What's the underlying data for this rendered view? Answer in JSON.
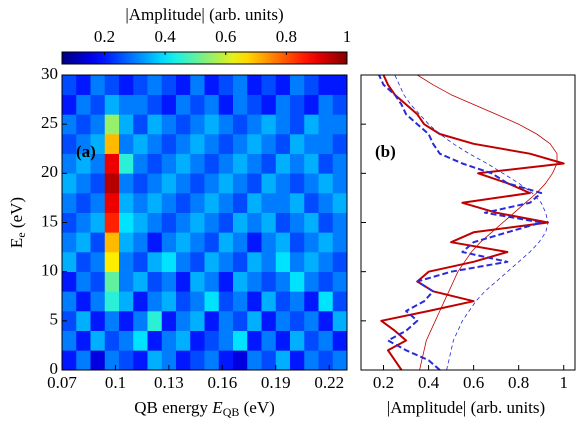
{
  "chart_data": [
    {
      "type": "heatmap",
      "panel_label": "(a)",
      "xlabel_parts": [
        "QB energy ",
        "E",
        "QB",
        " (eV)"
      ],
      "ylabel_parts": [
        "E",
        "e",
        " (eV)"
      ],
      "xlim": [
        0.07,
        0.23
      ],
      "xticks": [
        0.07,
        0.1,
        0.13,
        0.16,
        0.19,
        0.22
      ],
      "ylim": [
        0,
        30
      ],
      "yticks": [
        0,
        5,
        10,
        15,
        20,
        25,
        30
      ],
      "colormap": "jet",
      "colorbar": {
        "label": "|Amplitude| (arb. units)",
        "lim": [
          0.06,
          1
        ],
        "ticks": [
          0.2,
          0.4,
          0.6,
          0.8,
          1
        ]
      },
      "z": [
        [
          0.2,
          0.3,
          0.15,
          0.3,
          0.25,
          0.2,
          0.35,
          0.3,
          0.2,
          0.25,
          0.3,
          0.2,
          0.15,
          0.3,
          0.25,
          0.35,
          0.2,
          0.3,
          0.25,
          0.3
        ],
        [
          0.3,
          0.2,
          0.35,
          0.25,
          0.3,
          0.4,
          0.2,
          0.3,
          0.35,
          0.2,
          0.25,
          0.3,
          0.4,
          0.2,
          0.3,
          0.2,
          0.35,
          0.25,
          0.3,
          0.2
        ],
        [
          0.25,
          0.35,
          0.2,
          0.3,
          0.2,
          0.3,
          0.45,
          0.2,
          0.3,
          0.35,
          0.2,
          0.3,
          0.25,
          0.35,
          0.2,
          0.3,
          0.25,
          0.3,
          0.2,
          0.35
        ],
        [
          0.3,
          0.2,
          0.3,
          0.45,
          0.35,
          0.2,
          0.3,
          0.35,
          0.25,
          0.3,
          0.4,
          0.25,
          0.3,
          0.2,
          0.35,
          0.25,
          0.3,
          0.2,
          0.4,
          0.25
        ],
        [
          0.2,
          0.3,
          0.25,
          0.5,
          0.3,
          0.35,
          0.25,
          0.3,
          0.2,
          0.35,
          0.3,
          0.2,
          0.35,
          0.3,
          0.25,
          0.3,
          0.4,
          0.3,
          0.25,
          0.3
        ],
        [
          0.35,
          0.25,
          0.3,
          0.65,
          0.3,
          0.25,
          0.35,
          0.4,
          0.3,
          0.25,
          0.35,
          0.3,
          0.25,
          0.35,
          0.3,
          0.4,
          0.3,
          0.35,
          0.3,
          0.25
        ],
        [
          0.3,
          0.35,
          0.25,
          0.7,
          0.35,
          0.3,
          0.2,
          0.3,
          0.35,
          0.3,
          0.25,
          0.35,
          0.3,
          0.2,
          0.3,
          0.35,
          0.25,
          0.3,
          0.35,
          0.3
        ],
        [
          0.25,
          0.3,
          0.35,
          0.85,
          0.4,
          0.35,
          0.3,
          0.25,
          0.3,
          0.35,
          0.3,
          0.25,
          0.35,
          0.3,
          0.35,
          0.25,
          0.3,
          0.35,
          0.25,
          0.3
        ],
        [
          0.3,
          0.25,
          0.3,
          0.9,
          0.35,
          0.3,
          0.35,
          0.3,
          0.25,
          0.3,
          0.35,
          0.3,
          0.25,
          0.35,
          0.3,
          0.3,
          0.35,
          0.25,
          0.3,
          0.35
        ],
        [
          0.35,
          0.3,
          0.25,
          0.95,
          0.3,
          0.25,
          0.3,
          0.35,
          0.3,
          0.25,
          0.3,
          0.35,
          0.3,
          0.25,
          0.35,
          0.3,
          0.25,
          0.3,
          0.35,
          0.3
        ],
        [
          0.3,
          0.35,
          0.3,
          0.9,
          0.45,
          0.3,
          0.25,
          0.3,
          0.35,
          0.3,
          0.25,
          0.3,
          0.35,
          0.3,
          0.25,
          0.35,
          0.3,
          0.35,
          0.25,
          0.3
        ],
        [
          0.25,
          0.3,
          0.35,
          0.7,
          0.3,
          0.35,
          0.3,
          0.25,
          0.3,
          0.35,
          0.3,
          0.25,
          0.3,
          0.35,
          0.3,
          0.25,
          0.35,
          0.3,
          0.3,
          0.25
        ],
        [
          0.3,
          0.25,
          0.3,
          0.55,
          0.35,
          0.25,
          0.35,
          0.3,
          0.25,
          0.3,
          0.35,
          0.3,
          0.25,
          0.3,
          0.35,
          0.3,
          0.25,
          0.35,
          0.3,
          0.3
        ],
        [
          0.2,
          0.3,
          0.25,
          0.35,
          0.3,
          0.3,
          0.25,
          0.2,
          0.3,
          0.25,
          0.3,
          0.2,
          0.3,
          0.25,
          0.2,
          0.3,
          0.25,
          0.2,
          0.3,
          0.25
        ],
        [
          0.25,
          0.2,
          0.3,
          0.25,
          0.2,
          0.25,
          0.3,
          0.25,
          0.2,
          0.3,
          0.2,
          0.25,
          0.3,
          0.2,
          0.25,
          0.2,
          0.3,
          0.25,
          0.2,
          0.2
        ]
      ]
    },
    {
      "type": "line",
      "panel_label": "(b)",
      "xlabel": "|Amplitude| (arb. units)",
      "xlim": [
        0.1,
        1.05
      ],
      "xticks": [
        0.2,
        0.4,
        0.6,
        0.8,
        1
      ],
      "ylim": [
        0,
        30
      ],
      "yticks": [
        0,
        5,
        10,
        15,
        20,
        25,
        30
      ],
      "y": [
        0,
        1,
        2,
        3,
        4,
        5,
        6,
        7,
        8,
        9,
        10,
        11,
        12,
        13,
        14,
        15,
        16,
        17,
        18,
        19,
        20,
        21,
        22,
        23,
        24,
        25,
        26,
        27,
        28,
        29,
        30
      ],
      "series": [
        {
          "color": "#c00000",
          "width": 2,
          "dash": false,
          "values": [
            0.28,
            0.25,
            0.22,
            0.3,
            0.25,
            0.19,
            0.4,
            0.6,
            0.42,
            0.35,
            0.4,
            0.6,
            0.75,
            0.5,
            0.6,
            0.93,
            0.7,
            0.55,
            0.85,
            0.75,
            0.62,
            1.0,
            0.85,
            0.6,
            0.45,
            0.38,
            0.35,
            0.3,
            0.25,
            0.22,
            0.2
          ]
        },
        {
          "color": "#c00000",
          "width": 0.8,
          "dash": false,
          "values": [
            0.36,
            0.37,
            0.38,
            0.39,
            0.41,
            0.43,
            0.45,
            0.47,
            0.49,
            0.51,
            0.53,
            0.56,
            0.59,
            0.63,
            0.68,
            0.73,
            0.78,
            0.83,
            0.88,
            0.92,
            0.95,
            0.97,
            0.97,
            0.94,
            0.88,
            0.8,
            0.7,
            0.6,
            0.5,
            0.42,
            0.35
          ]
        },
        {
          "color": "#2a2ad8",
          "width": 2,
          "dash": true,
          "values": [
            0.45,
            0.4,
            0.3,
            0.22,
            0.3,
            0.35,
            0.3,
            0.38,
            0.42,
            0.35,
            0.5,
            0.75,
            0.55,
            0.6,
            0.75,
            0.9,
            0.65,
            0.85,
            0.9,
            0.75,
            0.68,
            0.55,
            0.45,
            0.42,
            0.4,
            0.35,
            0.3,
            0.28,
            0.25,
            0.2,
            0.18
          ]
        },
        {
          "color": "#2a2ad8",
          "width": 0.8,
          "dash": true,
          "values": [
            0.48,
            0.49,
            0.5,
            0.51,
            0.53,
            0.55,
            0.58,
            0.61,
            0.65,
            0.7,
            0.75,
            0.8,
            0.85,
            0.89,
            0.92,
            0.93,
            0.92,
            0.9,
            0.86,
            0.8,
            0.73,
            0.66,
            0.58,
            0.51,
            0.45,
            0.4,
            0.36,
            0.32,
            0.29,
            0.27,
            0.25
          ]
        }
      ]
    }
  ]
}
